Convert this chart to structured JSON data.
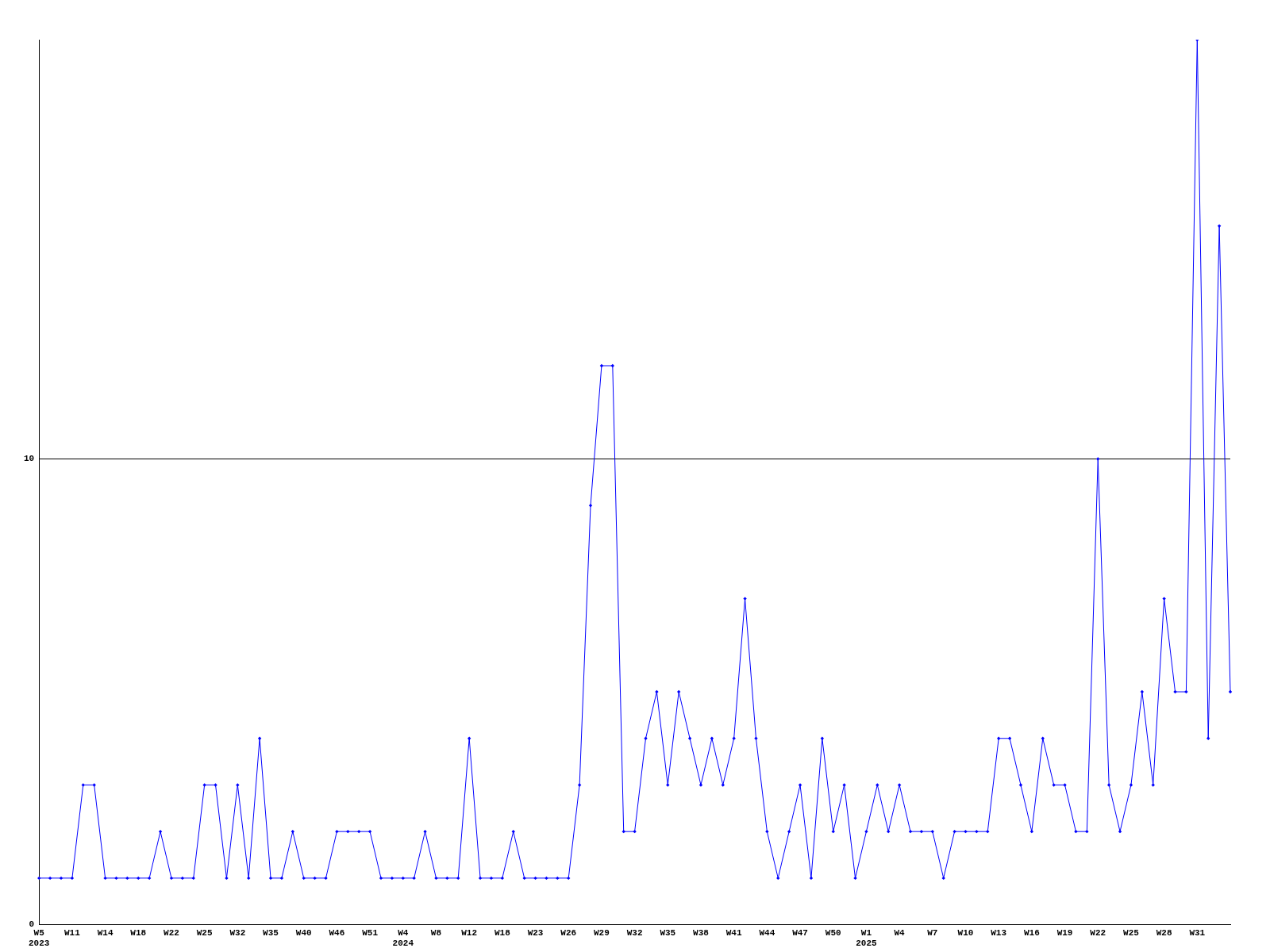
{
  "chart_data": {
    "type": "line",
    "categories": [
      "W5\n2023",
      null,
      null,
      "W11",
      null,
      null,
      "W14",
      null,
      null,
      "W18",
      null,
      null,
      "W22",
      null,
      null,
      "W25",
      null,
      null,
      "W32",
      null,
      null,
      "W35",
      null,
      null,
      "W40",
      null,
      null,
      "W46",
      null,
      null,
      "W51",
      null,
      null,
      "W4\n2024",
      null,
      null,
      "W8",
      null,
      null,
      "W12",
      null,
      null,
      "W18",
      null,
      null,
      "W23",
      null,
      null,
      "W26",
      null,
      null,
      "W29",
      null,
      null,
      "W32",
      null,
      null,
      "W35",
      null,
      null,
      "W38",
      null,
      null,
      "W41",
      null,
      null,
      "W44",
      null,
      null,
      "W47",
      null,
      null,
      "W50",
      null,
      null,
      "W1\n2025",
      null,
      null,
      "W4",
      null,
      null,
      "W7",
      null,
      null,
      "W10",
      null,
      null,
      "W13",
      null,
      null,
      "W16",
      null,
      null,
      "W19",
      null,
      null,
      "W22",
      null,
      null,
      "W25",
      null,
      null,
      "W28",
      null,
      null,
      "W31",
      null,
      null,
      null
    ],
    "series": [
      {
        "color": "#0000ff",
        "values": [
          1,
          1,
          1,
          1,
          3,
          3,
          1,
          1,
          1,
          1,
          1,
          2,
          1,
          1,
          1,
          3,
          3,
          1,
          3,
          1,
          4,
          1,
          1,
          2,
          1,
          1,
          1,
          2,
          2,
          2,
          2,
          1,
          1,
          1,
          1,
          2,
          1,
          1,
          1,
          4,
          1,
          1,
          1,
          2,
          1,
          1,
          1,
          1,
          1,
          3,
          9,
          12,
          12,
          2,
          2,
          4,
          5,
          3,
          5,
          4,
          3,
          4,
          3,
          4,
          7,
          4,
          2,
          1,
          2,
          3,
          1,
          4,
          2,
          3,
          1,
          2,
          3,
          2,
          3,
          2,
          2,
          2,
          1,
          2,
          2,
          2,
          2,
          4,
          4,
          3,
          2,
          4,
          3,
          3,
          2,
          2,
          10,
          3,
          2,
          3,
          5,
          3,
          7,
          5,
          5,
          19,
          4,
          15,
          5
        ]
      }
    ],
    "ylim": [
      0,
      19
    ],
    "yticks": [
      0,
      10
    ],
    "grid": "y",
    "marker": "diamond",
    "legend": false
  }
}
